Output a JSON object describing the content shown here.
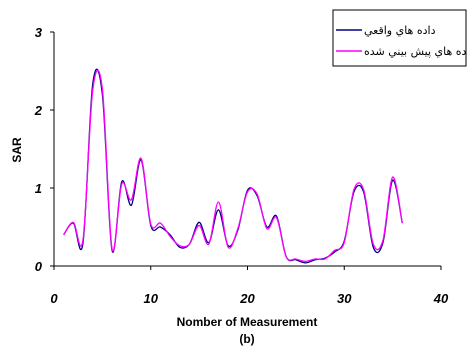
{
  "chart_data": {
    "type": "line",
    "title": "",
    "xlabel": "Nomber of Measurement",
    "ylabel": "SAR",
    "caption": "(b)",
    "xlim": [
      0,
      40
    ],
    "ylim": [
      0,
      3
    ],
    "xticks": [
      0,
      10,
      20,
      30,
      40
    ],
    "yticks": [
      0,
      1,
      2,
      3
    ],
    "grid": false,
    "legend_position": "top-right",
    "series": [
      {
        "name": "داده هاي واقعي",
        "color": "#000080",
        "x": [
          1,
          2,
          3,
          4,
          5,
          6,
          7,
          8,
          9,
          10,
          11,
          12,
          13,
          14,
          15,
          16,
          17,
          18,
          19,
          20,
          21,
          22,
          23,
          24,
          25,
          26,
          27,
          28,
          29,
          30,
          31,
          32,
          33,
          34,
          35,
          36
        ],
        "values": [
          0.4,
          0.55,
          0.3,
          2.33,
          2.2,
          0.2,
          1.08,
          0.78,
          1.36,
          0.52,
          0.5,
          0.4,
          0.24,
          0.28,
          0.56,
          0.3,
          0.72,
          0.26,
          0.46,
          0.97,
          0.9,
          0.5,
          0.64,
          0.12,
          0.08,
          0.04,
          0.08,
          0.1,
          0.18,
          0.32,
          0.95,
          0.95,
          0.24,
          0.3,
          1.1,
          0.55
        ]
      },
      {
        "name": "داده هاي پيش بيني شده",
        "color": "#ff00ff",
        "x": [
          1,
          2,
          3,
          4,
          5,
          6,
          7,
          8,
          9,
          10,
          11,
          12,
          13,
          14,
          15,
          16,
          17,
          18,
          19,
          20,
          21,
          22,
          23,
          24,
          25,
          26,
          27,
          28,
          29,
          30,
          31,
          32,
          33,
          34,
          35,
          36
        ],
        "values": [
          0.4,
          0.56,
          0.34,
          2.25,
          2.27,
          0.22,
          1.05,
          0.85,
          1.38,
          0.54,
          0.55,
          0.38,
          0.26,
          0.28,
          0.52,
          0.28,
          0.82,
          0.24,
          0.48,
          0.95,
          0.92,
          0.48,
          0.62,
          0.12,
          0.09,
          0.06,
          0.09,
          0.09,
          0.2,
          0.3,
          0.98,
          0.98,
          0.28,
          0.33,
          1.14,
          0.55
        ]
      }
    ]
  }
}
